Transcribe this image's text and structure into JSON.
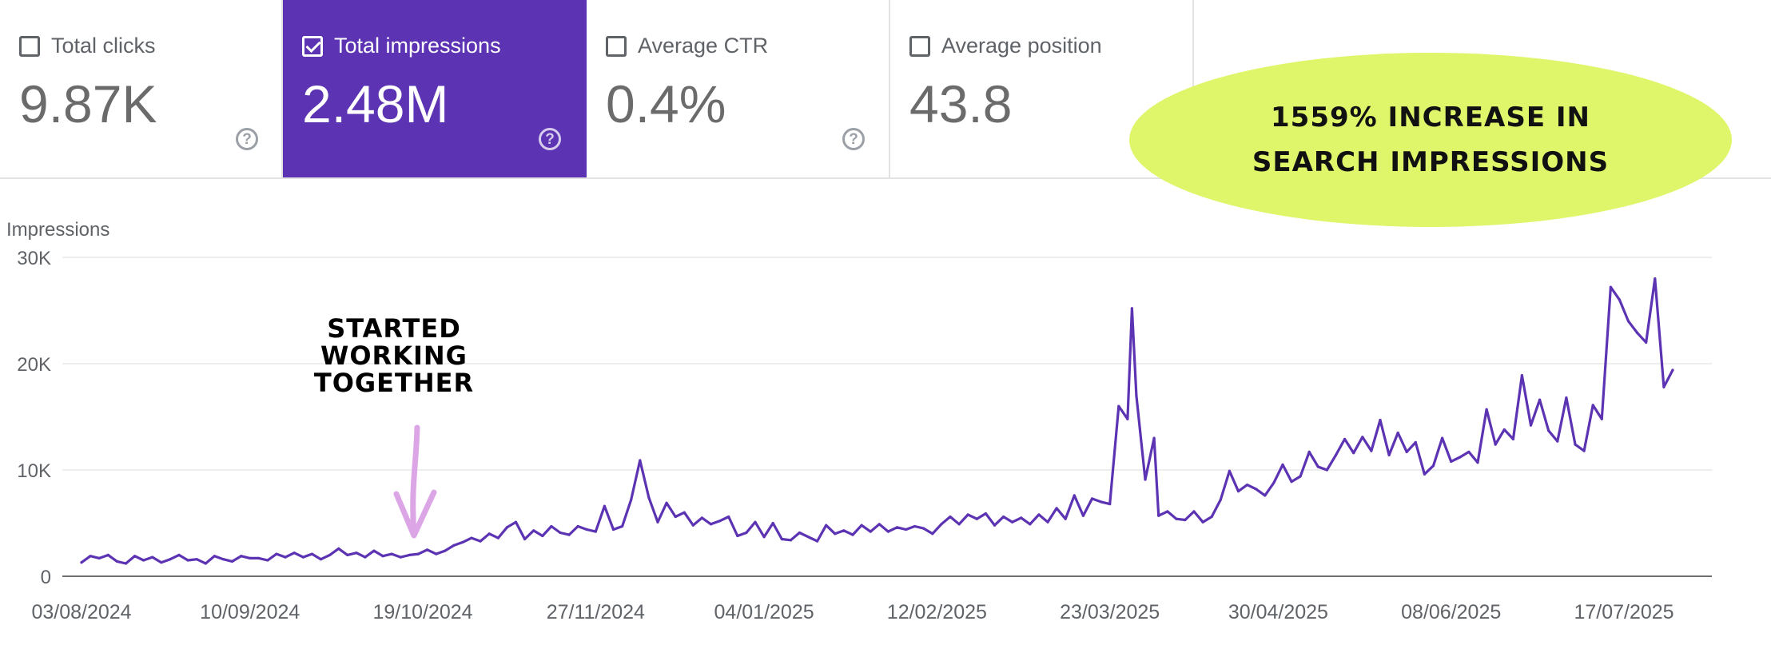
{
  "cards": [
    {
      "label": "Total clicks",
      "value": "9.87K",
      "checked": false,
      "help": "?"
    },
    {
      "label": "Total impressions",
      "value": "2.48M",
      "checked": true,
      "help": "?"
    },
    {
      "label": "Average CTR",
      "value": "0.4%",
      "checked": false,
      "help": "?"
    },
    {
      "label": "Average position",
      "value": "43.8",
      "checked": false,
      "help": ""
    }
  ],
  "promo": {
    "line1": "1559% INCREASE IN",
    "line2": "SEARCH IMPRESSIONS"
  },
  "annotation": {
    "line1": "STARTED",
    "line2": "WORKING",
    "line3": "TOGETHER"
  },
  "colors": {
    "accent": "#5c33b3",
    "promo_bg": "#dff56a",
    "arrow": "#dca6e6",
    "grid": "#e8e8e8"
  },
  "chart_data": {
    "type": "line",
    "ylabel": "Impressions",
    "ylim": [
      0,
      30000
    ],
    "yticks": [
      {
        "value": 0,
        "label": "0"
      },
      {
        "value": 10000,
        "label": "10K"
      },
      {
        "value": 20000,
        "label": "20K"
      },
      {
        "value": 30000,
        "label": "30K"
      }
    ],
    "xlim": [
      "2024-08-03",
      "2025-08-05"
    ],
    "xticks": [
      {
        "date": "2024-08-03",
        "label": "03/08/2024"
      },
      {
        "date": "2024-09-10",
        "label": "10/09/2024"
      },
      {
        "date": "2024-10-19",
        "label": "19/10/2024"
      },
      {
        "date": "2024-11-27",
        "label": "27/11/2024"
      },
      {
        "date": "2025-01-04",
        "label": "04/01/2025"
      },
      {
        "date": "2025-02-12",
        "label": "12/02/2025"
      },
      {
        "date": "2025-03-23",
        "label": "23/03/2025"
      },
      {
        "date": "2025-04-30",
        "label": "30/04/2025"
      },
      {
        "date": "2025-06-08",
        "label": "08/06/2025"
      },
      {
        "date": "2025-07-17",
        "label": "17/07/2025"
      }
    ],
    "annotation_date": "2024-10-17",
    "series": [
      {
        "color": "#5c33b3",
        "points": [
          [
            "2024-08-03",
            1300
          ],
          [
            "2024-08-05",
            1900
          ],
          [
            "2024-08-07",
            1700
          ],
          [
            "2024-08-09",
            2000
          ],
          [
            "2024-08-11",
            1400
          ],
          [
            "2024-08-13",
            1200
          ],
          [
            "2024-08-15",
            1900
          ],
          [
            "2024-08-17",
            1500
          ],
          [
            "2024-08-19",
            1800
          ],
          [
            "2024-08-21",
            1300
          ],
          [
            "2024-08-23",
            1600
          ],
          [
            "2024-08-25",
            2000
          ],
          [
            "2024-08-27",
            1500
          ],
          [
            "2024-08-29",
            1600
          ],
          [
            "2024-08-31",
            1200
          ],
          [
            "2024-09-02",
            1900
          ],
          [
            "2024-09-04",
            1600
          ],
          [
            "2024-09-06",
            1400
          ],
          [
            "2024-09-08",
            1900
          ],
          [
            "2024-09-10",
            1700
          ],
          [
            "2024-09-12",
            1700
          ],
          [
            "2024-09-14",
            1500
          ],
          [
            "2024-09-16",
            2100
          ],
          [
            "2024-09-18",
            1800
          ],
          [
            "2024-09-20",
            2200
          ],
          [
            "2024-09-22",
            1800
          ],
          [
            "2024-09-24",
            2100
          ],
          [
            "2024-09-26",
            1600
          ],
          [
            "2024-09-28",
            2000
          ],
          [
            "2024-09-30",
            2600
          ],
          [
            "2024-10-02",
            2000
          ],
          [
            "2024-10-04",
            2200
          ],
          [
            "2024-10-06",
            1800
          ],
          [
            "2024-10-08",
            2400
          ],
          [
            "2024-10-10",
            1900
          ],
          [
            "2024-10-12",
            2100
          ],
          [
            "2024-10-14",
            1800
          ],
          [
            "2024-10-16",
            2000
          ],
          [
            "2024-10-18",
            2100
          ],
          [
            "2024-10-20",
            2500
          ],
          [
            "2024-10-22",
            2100
          ],
          [
            "2024-10-24",
            2400
          ],
          [
            "2024-10-26",
            2900
          ],
          [
            "2024-10-28",
            3200
          ],
          [
            "2024-10-30",
            3600
          ],
          [
            "2024-11-01",
            3300
          ],
          [
            "2024-11-03",
            4000
          ],
          [
            "2024-11-05",
            3600
          ],
          [
            "2024-11-07",
            4600
          ],
          [
            "2024-11-09",
            5100
          ],
          [
            "2024-11-11",
            3500
          ],
          [
            "2024-11-13",
            4300
          ],
          [
            "2024-11-15",
            3800
          ],
          [
            "2024-11-17",
            4700
          ],
          [
            "2024-11-19",
            4100
          ],
          [
            "2024-11-21",
            3900
          ],
          [
            "2024-11-23",
            4700
          ],
          [
            "2024-11-25",
            4400
          ],
          [
            "2024-11-27",
            4200
          ],
          [
            "2024-11-29",
            6600
          ],
          [
            "2024-12-01",
            4400
          ],
          [
            "2024-12-03",
            4700
          ],
          [
            "2024-12-05",
            7200
          ],
          [
            "2024-12-07",
            10900
          ],
          [
            "2024-12-09",
            7400
          ],
          [
            "2024-12-11",
            5100
          ],
          [
            "2024-12-13",
            6900
          ],
          [
            "2024-12-15",
            5600
          ],
          [
            "2024-12-17",
            6000
          ],
          [
            "2024-12-19",
            4800
          ],
          [
            "2024-12-21",
            5500
          ],
          [
            "2024-12-23",
            4900
          ],
          [
            "2024-12-25",
            5200
          ],
          [
            "2024-12-27",
            5600
          ],
          [
            "2024-12-29",
            3800
          ],
          [
            "2024-12-31",
            4100
          ],
          [
            "2025-01-02",
            5100
          ],
          [
            "2025-01-04",
            3700
          ],
          [
            "2025-01-06",
            5000
          ],
          [
            "2025-01-08",
            3500
          ],
          [
            "2025-01-10",
            3400
          ],
          [
            "2025-01-12",
            4100
          ],
          [
            "2025-01-14",
            3700
          ],
          [
            "2025-01-16",
            3300
          ],
          [
            "2025-01-18",
            4800
          ],
          [
            "2025-01-20",
            4000
          ],
          [
            "2025-01-22",
            4300
          ],
          [
            "2025-01-24",
            3900
          ],
          [
            "2025-01-26",
            4800
          ],
          [
            "2025-01-28",
            4200
          ],
          [
            "2025-01-30",
            4900
          ],
          [
            "2025-02-01",
            4200
          ],
          [
            "2025-02-03",
            4600
          ],
          [
            "2025-02-05",
            4400
          ],
          [
            "2025-02-07",
            4700
          ],
          [
            "2025-02-09",
            4500
          ],
          [
            "2025-02-11",
            4000
          ],
          [
            "2025-02-13",
            4900
          ],
          [
            "2025-02-15",
            5600
          ],
          [
            "2025-02-17",
            4900
          ],
          [
            "2025-02-19",
            5800
          ],
          [
            "2025-02-21",
            5400
          ],
          [
            "2025-02-23",
            5900
          ],
          [
            "2025-02-25",
            4800
          ],
          [
            "2025-02-27",
            5600
          ],
          [
            "2025-03-01",
            5100
          ],
          [
            "2025-03-03",
            5500
          ],
          [
            "2025-03-05",
            4900
          ],
          [
            "2025-03-07",
            5800
          ],
          [
            "2025-03-09",
            5100
          ],
          [
            "2025-03-11",
            6400
          ],
          [
            "2025-03-13",
            5400
          ],
          [
            "2025-03-15",
            7600
          ],
          [
            "2025-03-17",
            5700
          ],
          [
            "2025-03-19",
            7300
          ],
          [
            "2025-03-21",
            7000
          ],
          [
            "2025-03-23",
            6800
          ],
          [
            "2025-03-25",
            16000
          ],
          [
            "2025-03-27",
            14800
          ],
          [
            "2025-03-28",
            25200
          ],
          [
            "2025-03-29",
            17000
          ],
          [
            "2025-03-31",
            9100
          ],
          [
            "2025-04-02",
            13000
          ],
          [
            "2025-04-03",
            5700
          ],
          [
            "2025-04-05",
            6100
          ],
          [
            "2025-04-07",
            5400
          ],
          [
            "2025-04-09",
            5300
          ],
          [
            "2025-04-11",
            6100
          ],
          [
            "2025-04-13",
            5100
          ],
          [
            "2025-04-15",
            5600
          ],
          [
            "2025-04-17",
            7200
          ],
          [
            "2025-04-19",
            9900
          ],
          [
            "2025-04-21",
            8000
          ],
          [
            "2025-04-23",
            8600
          ],
          [
            "2025-04-25",
            8200
          ],
          [
            "2025-04-27",
            7600
          ],
          [
            "2025-04-29",
            8800
          ],
          [
            "2025-05-01",
            10500
          ],
          [
            "2025-05-03",
            8900
          ],
          [
            "2025-05-05",
            9400
          ],
          [
            "2025-05-07",
            11700
          ],
          [
            "2025-05-09",
            10300
          ],
          [
            "2025-05-11",
            10000
          ],
          [
            "2025-05-13",
            11400
          ],
          [
            "2025-05-15",
            12900
          ],
          [
            "2025-05-17",
            11600
          ],
          [
            "2025-05-19",
            13100
          ],
          [
            "2025-05-21",
            11800
          ],
          [
            "2025-05-23",
            14700
          ],
          [
            "2025-05-25",
            11400
          ],
          [
            "2025-05-27",
            13500
          ],
          [
            "2025-05-29",
            11700
          ],
          [
            "2025-05-31",
            12600
          ],
          [
            "2025-06-02",
            9600
          ],
          [
            "2025-06-04",
            10400
          ],
          [
            "2025-06-06",
            13000
          ],
          [
            "2025-06-08",
            10800
          ],
          [
            "2025-06-10",
            11200
          ],
          [
            "2025-06-12",
            11700
          ],
          [
            "2025-06-14",
            10700
          ],
          [
            "2025-06-16",
            15700
          ],
          [
            "2025-06-18",
            12400
          ],
          [
            "2025-06-20",
            13800
          ],
          [
            "2025-06-22",
            12900
          ],
          [
            "2025-06-24",
            18900
          ],
          [
            "2025-06-26",
            14200
          ],
          [
            "2025-06-28",
            16600
          ],
          [
            "2025-06-30",
            13700
          ],
          [
            "2025-07-02",
            12700
          ],
          [
            "2025-07-04",
            16800
          ],
          [
            "2025-07-06",
            12400
          ],
          [
            "2025-07-08",
            11800
          ],
          [
            "2025-07-10",
            16100
          ],
          [
            "2025-07-12",
            14800
          ],
          [
            "2025-07-14",
            27200
          ],
          [
            "2025-07-16",
            26000
          ],
          [
            "2025-07-18",
            24000
          ],
          [
            "2025-07-20",
            22900
          ],
          [
            "2025-07-22",
            22000
          ],
          [
            "2025-07-24",
            28000
          ],
          [
            "2025-07-26",
            17800
          ],
          [
            "2025-07-28",
            19400
          ]
        ]
      }
    ]
  }
}
